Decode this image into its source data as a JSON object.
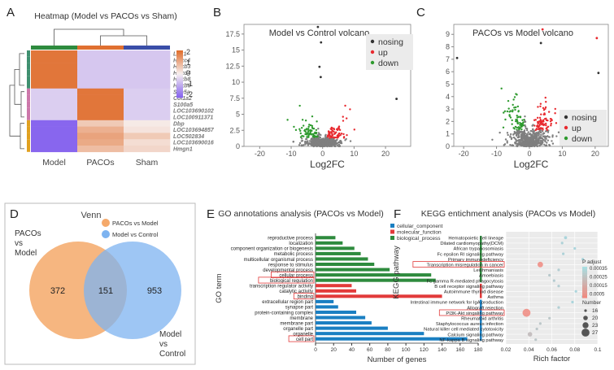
{
  "panels": {
    "A": {
      "letter": "A",
      "title": "Heatmap (Model vs PACOs vs Sham)",
      "columns": [
        "Model",
        "PACOs",
        "Sham"
      ],
      "genes": [
        "Lbx1",
        "Hoxc4",
        "Hoxb3",
        "Hoxd4",
        "Hoxb8",
        "Hoxb6",
        "Scn5a",
        "Col1a2",
        "S100a5",
        "LOC103690102",
        "LOC100911371",
        "Dbp",
        "LOC103694857",
        "LOC502834",
        "LOC103690016",
        "Hmgn1"
      ],
      "legend_ticks": [
        "2",
        "1",
        "0",
        "-1",
        "-2"
      ],
      "colors": {
        "high": "#e07030",
        "mid": "#f7f0f0",
        "low": "#8866ee"
      }
    },
    "B": {
      "letter": "B",
      "title": "Model   vs   Control volcano",
      "xlabel": "Log2FC",
      "x_ticks": [
        "-20",
        "-10",
        "0",
        "10",
        "20"
      ],
      "y_ticks": [
        "0",
        "2.5",
        "5",
        "7.5",
        "10",
        "12.5",
        "15",
        "17.5"
      ],
      "legend": [
        "nosing",
        "up",
        "down"
      ]
    },
    "C": {
      "letter": "C",
      "title": "PACOs   vs   Model volcano",
      "xlabel": "Log2FC",
      "x_ticks": [
        "-20",
        "-10",
        "0",
        "10",
        "20"
      ],
      "y_ticks": [
        "0",
        "1",
        "2",
        "3",
        "4",
        "5",
        "6",
        "7",
        "8",
        "9"
      ],
      "legend": [
        "nosing",
        "up",
        "down"
      ]
    },
    "D": {
      "letter": "D",
      "title": "Venn",
      "legend": [
        "PACOs vs Model",
        "Model vs Control"
      ],
      "left_label": [
        "PACOs",
        "vs",
        "Model"
      ],
      "right_label": [
        "Model",
        "vs",
        "Control"
      ],
      "counts": {
        "left_only": "372",
        "overlap": "151",
        "right_only": "953"
      },
      "colors": {
        "left": "#f5a96a",
        "right": "#7db3f0"
      }
    },
    "E": {
      "letter": "E",
      "title": "GO annotations analysis (PACOs vs Model)",
      "ylabel": "GO term",
      "xlabel": "Number of genes",
      "legend": [
        "cellular_component",
        "molecular_function",
        "biological_process"
      ],
      "highlighted": [
        "cellular process",
        "biological regulation",
        "binding",
        "cell part"
      ]
    },
    "F": {
      "letter": "F",
      "title": "KEGG entichment analysis (PACOs vs Model)",
      "ylabel": "KEGG pathway",
      "xlabel": "Rich factor",
      "padj_title": "P adjust",
      "padj_ticks": [
        "0.00035",
        "0.00025",
        "0.00015",
        "0.0005"
      ],
      "number_title": "Number",
      "number_ticks": [
        "16",
        "20",
        "23",
        "27"
      ],
      "highlighted": [
        "Transcription misregulation in cancer",
        "PI3K-Akt singaling pathway"
      ]
    }
  },
  "chart_data": [
    {
      "type": "heatmap",
      "panel": "A",
      "title": "Heatmap (Model vs PACOs vs Sham)",
      "columns": [
        "Model",
        "PACOs",
        "Sham"
      ],
      "rows": [
        "Lbx1",
        "Hoxc4",
        "Hoxb3",
        "Hoxd4",
        "Hoxb8",
        "Hoxb6",
        "Scn5a",
        "Col1a2",
        "S100a5",
        "LOC103690102",
        "LOC100911371",
        "Dbp",
        "LOC103694857",
        "LOC502834",
        "LOC103690016",
        "Hmgn1"
      ],
      "values": [
        [
          1.9,
          -0.6,
          -0.6
        ],
        [
          1.9,
          -0.6,
          -0.6
        ],
        [
          1.9,
          -0.6,
          -0.6
        ],
        [
          1.9,
          -0.6,
          -0.6
        ],
        [
          1.9,
          -0.6,
          -0.6
        ],
        [
          1.9,
          -0.6,
          -0.6
        ],
        [
          -0.5,
          1.9,
          -0.5
        ],
        [
          -0.5,
          1.9,
          -0.5
        ],
        [
          -0.5,
          1.9,
          -0.5
        ],
        [
          -0.5,
          1.9,
          -0.5
        ],
        [
          -0.5,
          1.9,
          -0.5
        ],
        [
          -2,
          0.6,
          0.1
        ],
        [
          -2,
          1.0,
          0.2
        ],
        [
          -2,
          1.2,
          0.6
        ],
        [
          -2,
          1.1,
          0.3
        ],
        [
          -2,
          0.8,
          0.4
        ]
      ],
      "color_range": [
        -2,
        2
      ]
    },
    {
      "type": "scatter",
      "panel": "B",
      "title": "Model vs Control volcano",
      "xlabel": "Log2FC",
      "ylabel": "",
      "xlim": [
        -25,
        28
      ],
      "ylim": [
        0,
        19
      ],
      "series": [
        {
          "name": "nosing",
          "color": "#7f7f7f"
        },
        {
          "name": "up",
          "color": "#e8292f"
        },
        {
          "name": "down",
          "color": "#2e9a2e"
        }
      ],
      "highlight_points": [
        {
          "x": -1.5,
          "y": 18.6,
          "series": "nosing"
        },
        {
          "x": -0.5,
          "y": 16.2,
          "series": "nosing"
        },
        {
          "x": -1.0,
          "y": 12.4,
          "series": "nosing"
        },
        {
          "x": -0.6,
          "y": 10.8,
          "series": "nosing"
        },
        {
          "x": 23.5,
          "y": 7.4,
          "series": "nosing"
        }
      ]
    },
    {
      "type": "scatter",
      "panel": "C",
      "title": "PACOs vs Model volcano",
      "xlabel": "Log2FC",
      "ylabel": "",
      "xlim": [
        -23,
        24
      ],
      "ylim": [
        0,
        9.8
      ],
      "series": [
        {
          "name": "nosing",
          "color": "#7f7f7f"
        },
        {
          "name": "up",
          "color": "#e8292f"
        },
        {
          "name": "down",
          "color": "#2e9a2e"
        }
      ],
      "highlight_points": [
        {
          "x": 4.0,
          "y": 9.4,
          "series": "up"
        },
        {
          "x": 20.5,
          "y": 8.7,
          "series": "up"
        },
        {
          "x": 3.5,
          "y": 8.3,
          "series": "nosing"
        },
        {
          "x": -22.0,
          "y": 7.1,
          "series": "nosing"
        },
        {
          "x": 21.0,
          "y": 5.9,
          "series": "nosing"
        }
      ]
    },
    {
      "type": "bar",
      "panel": "E",
      "orientation": "horizontal",
      "title": "GO annotations analysis (PACOs vs Model)",
      "xlabel": "Number of genes",
      "ylabel": "GO term",
      "xlim": [
        0,
        180
      ],
      "x_ticks": [
        0,
        20,
        40,
        60,
        80,
        100,
        120,
        140,
        160,
        180
      ],
      "categories": [
        "reproductive process",
        "localization",
        "component organization or biogenesis",
        "metabolic process",
        "multicellular organismal process",
        "response to stimulus",
        "developmental process",
        "cellular process",
        "biological regulation",
        "transcription regulator activity",
        "catalytic activity",
        "binding",
        "extracellular region part",
        "synapse part",
        "protein-containing complex",
        "membrane",
        "membrane part",
        "organelle part",
        "organelle",
        "cell part"
      ],
      "groups": [
        "biological_process",
        "biological_process",
        "biological_process",
        "biological_process",
        "biological_process",
        "biological_process",
        "biological_process",
        "biological_process",
        "biological_process",
        "molecular_function",
        "molecular_function",
        "molecular_function",
        "cellular_component",
        "cellular_component",
        "cellular_component",
        "cellular_component",
        "cellular_component",
        "cellular_component",
        "cellular_component",
        "cellular_component"
      ],
      "values": [
        22,
        30,
        43,
        50,
        58,
        65,
        82,
        128,
        133,
        40,
        45,
        140,
        20,
        25,
        45,
        55,
        62,
        80,
        120,
        168
      ],
      "group_colors": {
        "cellular_component": "#1a7fc2",
        "molecular_function": "#e23a3a",
        "biological_process": "#2e8b3e"
      }
    },
    {
      "type": "scatter",
      "panel": "F",
      "title": "KEGG entichment analysis (PACOs vs Model)",
      "xlabel": "Rich factor",
      "ylabel": "KEGG pathway",
      "xlim": [
        0.02,
        0.1
      ],
      "x_ticks": [
        "0.02",
        "0.04",
        "0.06",
        "0.08",
        "0.1"
      ],
      "categories": [
        "Hematopoietic cell lineage",
        "Dilated cardiomyopathy(DCM)",
        "African trypanosomiasis",
        "Fc epsilon RI signaling pathway",
        "Primary immunodeficiency",
        "Transcription misregulation in cancer",
        "Leishmaniasis",
        "Amoebiasis",
        "Fc gamma R-mediated phagocytosis",
        "B cell receptor signaling pathway",
        "Autoimmune thyroid disease",
        "Asthma",
        "Intestinal immune network for IgA production",
        "Allograft rejection",
        "PI3K-Akt singaling pathway",
        "Rheumatoid arthritis",
        "Staphylococcus aureus infection",
        "Natural killer cell mediated cytotoxicity",
        "Calcium signaling pathway",
        "NF-kappa B signaling pathway"
      ],
      "rich_factor": [
        0.072,
        0.069,
        0.08,
        0.07,
        0.087,
        0.05,
        0.066,
        0.058,
        0.062,
        0.066,
        0.081,
        0.087,
        0.078,
        0.066,
        0.038,
        0.058,
        0.05,
        0.047,
        0.041,
        0.046
      ],
      "gene_number": [
        17,
        16,
        16,
        16,
        16,
        22,
        16,
        16,
        16,
        16,
        16,
        16,
        16,
        16,
        27,
        16,
        16,
        16,
        20,
        16
      ],
      "p_adjust": [
        0.0001,
        0.00012,
        0.0001,
        0.00012,
        0.0001,
        0.0005,
        0.00015,
        0.00018,
        0.00016,
        0.00015,
        0.0001,
        0.0001,
        0.0001,
        0.00014,
        0.0005,
        0.0002,
        0.0002,
        0.0002,
        0.00025,
        0.0002
      ]
    }
  ]
}
